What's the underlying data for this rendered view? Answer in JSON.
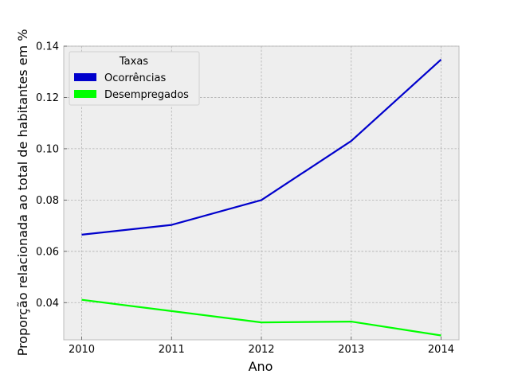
{
  "chart_data": {
    "type": "line",
    "title": "",
    "xlabel": "Ano",
    "ylabel": "Proporção relacionada ao total de habitantes em %",
    "x": [
      2010,
      2011,
      2012,
      2013,
      2014
    ],
    "x_tick_labels": [
      "2010",
      "2011",
      "2012",
      "2013",
      "2014"
    ],
    "xlim": [
      2009.8,
      2014.2
    ],
    "ylim": [
      0.0255,
      0.14
    ],
    "y_ticks": [
      0.04,
      0.06,
      0.08,
      0.1,
      0.12,
      0.14
    ],
    "y_tick_labels": [
      "0.04",
      "0.06",
      "0.08",
      "0.10",
      "0.12",
      "0.14"
    ],
    "grid": true,
    "legend": {
      "title": "Taxas",
      "position": "top-left"
    },
    "series": [
      {
        "name": "Ocorrências",
        "color": "#0000cc",
        "values": [
          0.0665,
          0.0703,
          0.08,
          0.103,
          0.1348
        ]
      },
      {
        "name": "Desempregados",
        "color": "#00ff00",
        "values": [
          0.0411,
          0.0367,
          0.0323,
          0.0326,
          0.0272
        ]
      }
    ]
  }
}
